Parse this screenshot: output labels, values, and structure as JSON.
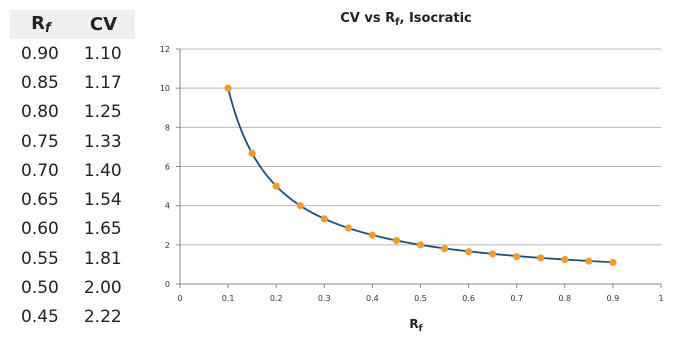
{
  "table": {
    "headers": {
      "rf_main": "R",
      "rf_sub": "f",
      "cv": "CV"
    },
    "rows": [
      {
        "rf": "0.90",
        "cv": "1.10"
      },
      {
        "rf": "0.85",
        "cv": "1.17"
      },
      {
        "rf": "0.80",
        "cv": "1.25"
      },
      {
        "rf": "0.75",
        "cv": "1.33"
      },
      {
        "rf": "0.70",
        "cv": "1.40"
      },
      {
        "rf": "0.65",
        "cv": "1.54"
      },
      {
        "rf": "0.60",
        "cv": "1.65"
      },
      {
        "rf": "0.55",
        "cv": "1.81"
      },
      {
        "rf": "0.50",
        "cv": "2.00"
      },
      {
        "rf": "0.45",
        "cv": "2.22"
      }
    ]
  },
  "chart_data": {
    "type": "scatter",
    "title": {
      "prefix": "CV vs R",
      "sub": "f",
      "suffix": ", Isocratic"
    },
    "xlabel": {
      "main": "R",
      "sub": "f"
    },
    "ylabel": "",
    "xlim": [
      0,
      1
    ],
    "ylim": [
      0,
      12
    ],
    "xticks": [
      "0",
      "0.1",
      "0.2",
      "0.3",
      "0.4",
      "0.5",
      "0.6",
      "0.7",
      "0.8",
      "0.9",
      "1"
    ],
    "yticks": [
      "0",
      "2",
      "4",
      "6",
      "8",
      "10",
      "12"
    ],
    "grid": "horizontal",
    "series": [
      {
        "x": [
          0.1,
          0.15,
          0.2,
          0.25,
          0.3,
          0.35,
          0.4,
          0.45,
          0.5,
          0.55,
          0.6,
          0.65,
          0.7,
          0.75,
          0.8,
          0.85,
          0.9
        ],
        "y": [
          10,
          6.67,
          5,
          4,
          3.33,
          2.86,
          2.5,
          2.22,
          2,
          1.81,
          1.65,
          1.54,
          1.4,
          1.33,
          1.25,
          1.17,
          1.1
        ]
      }
    ],
    "colors": {
      "line": "#1f4e79",
      "marker": "#f39c2b",
      "grid": "#b8b8b8"
    }
  }
}
